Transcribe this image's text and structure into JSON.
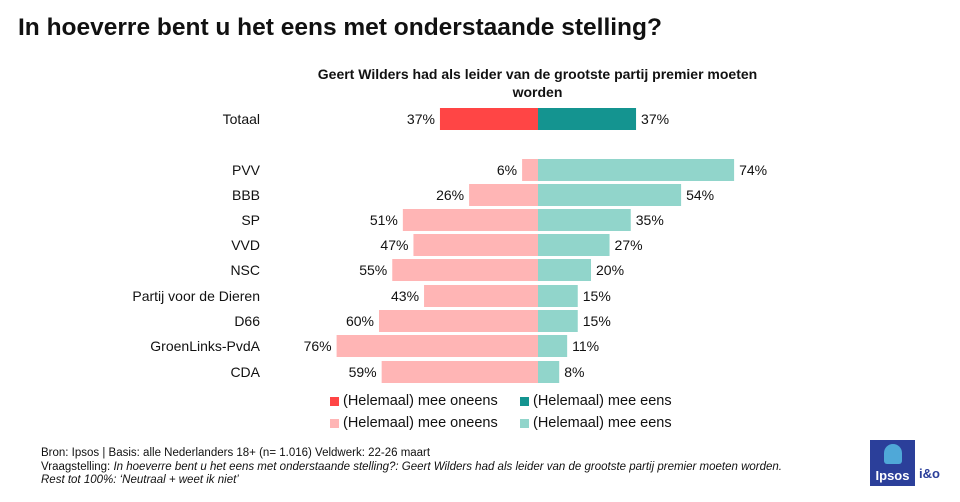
{
  "title": "In hoeverre bent u het eens met onderstaande stelling?",
  "subtitle": "Geert Wilders had als leider van de grootste partij premier moeten worden",
  "chart_data": {
    "type": "bar",
    "orientation": "horizontal-diverging",
    "unit": "%",
    "categories": [
      "Totaal",
      "PVV",
      "BBB",
      "SP",
      "VVD",
      "NSC",
      "Partij voor de Dieren",
      "D66",
      "GroenLinks-PvdA",
      "CDA"
    ],
    "series": [
      {
        "name": "(Helemaal) mee oneens",
        "values": [
          37,
          6,
          26,
          51,
          47,
          55,
          43,
          60,
          76,
          59
        ]
      },
      {
        "name": "(Helemaal) mee eens",
        "values": [
          37,
          74,
          54,
          35,
          27,
          20,
          15,
          15,
          11,
          8
        ]
      }
    ],
    "colors": {
      "total_disagree": "#ff4545",
      "total_agree": "#149490",
      "party_disagree": "#ffb5b5",
      "party_agree": "#91d5cb"
    },
    "xlim": [
      0,
      100
    ],
    "legend_position": "bottom"
  },
  "legend": {
    "total_disagree": "(Helemaal) mee oneens",
    "total_agree": "(Helemaal) mee eens",
    "party_disagree": "(Helemaal) mee oneens",
    "party_agree": "(Helemaal) mee eens"
  },
  "footer": {
    "source": "Bron: Ipsos | Basis: alle Nederlanders  18+ (n= 1.016) Veldwerk: 22-26 maart",
    "question_label": "Vraagstelling: ",
    "question_text": "In hoeverre  bent u het eens met onderstaande  stelling?: Geert Wilders had als leider van de grootste partij premier  moeten worden.  Rest tot 100%: ‘Neutraal  + weet  ik niet’"
  },
  "logo": {
    "brand": "Ipsos",
    "partner": "i&o"
  }
}
